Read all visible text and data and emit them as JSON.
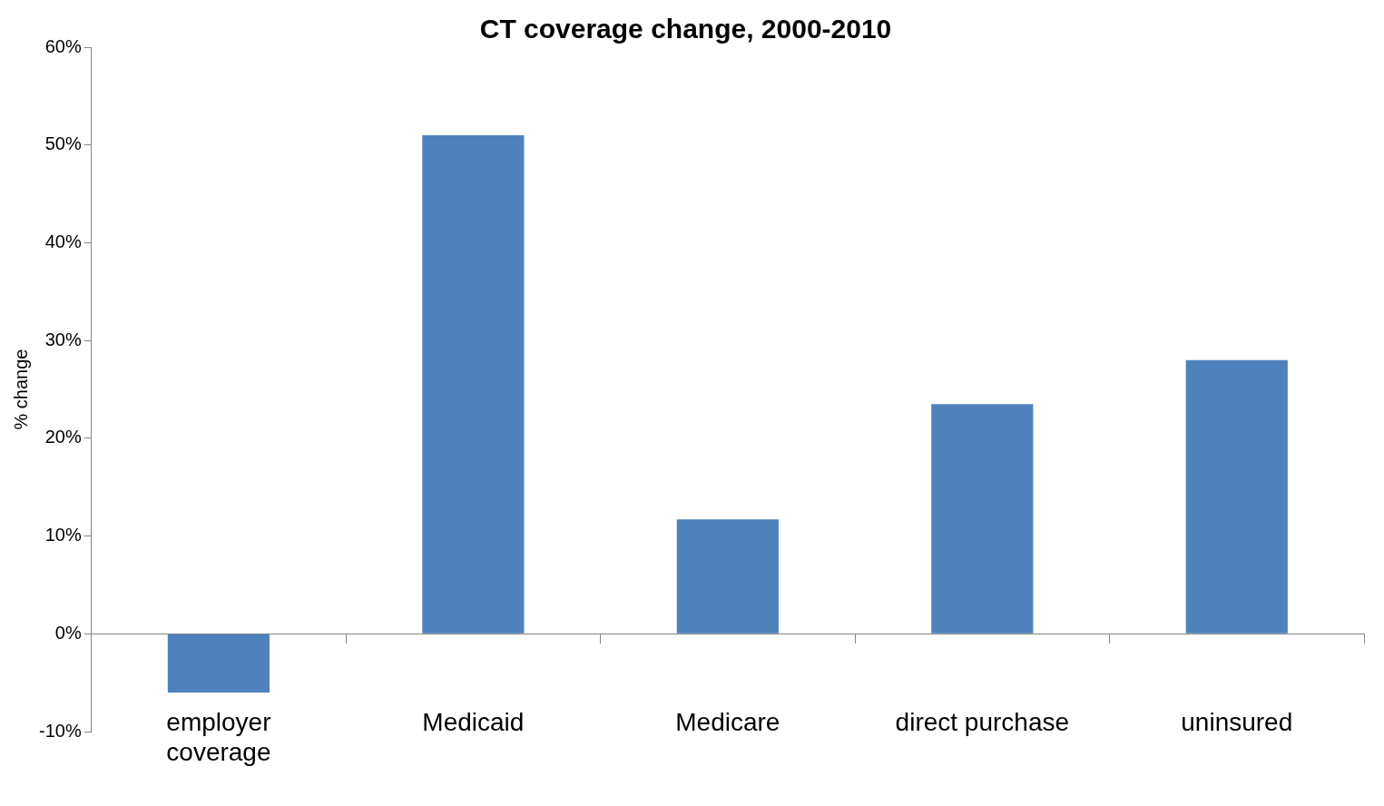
{
  "chart_data": {
    "type": "bar",
    "title": "CT coverage change, 2000-2010",
    "ylabel": "% change",
    "categories": [
      "employer coverage",
      "Medicaid",
      "Medicare",
      "direct purchase",
      "uninsured"
    ],
    "values": [
      -6.0,
      51.0,
      11.7,
      23.5,
      28.0
    ],
    "color": "#4f81bd",
    "ylim": [
      -10,
      60
    ],
    "yticks": [
      {
        "value": -10,
        "label": "-10%"
      },
      {
        "value": 0,
        "label": "0%"
      },
      {
        "value": 10,
        "label": "10%"
      },
      {
        "value": 20,
        "label": "20%"
      },
      {
        "value": 30,
        "label": "30%"
      },
      {
        "value": 40,
        "label": "40%"
      },
      {
        "value": 50,
        "label": "50%"
      },
      {
        "value": 60,
        "label": "60%"
      }
    ],
    "legend": false
  }
}
